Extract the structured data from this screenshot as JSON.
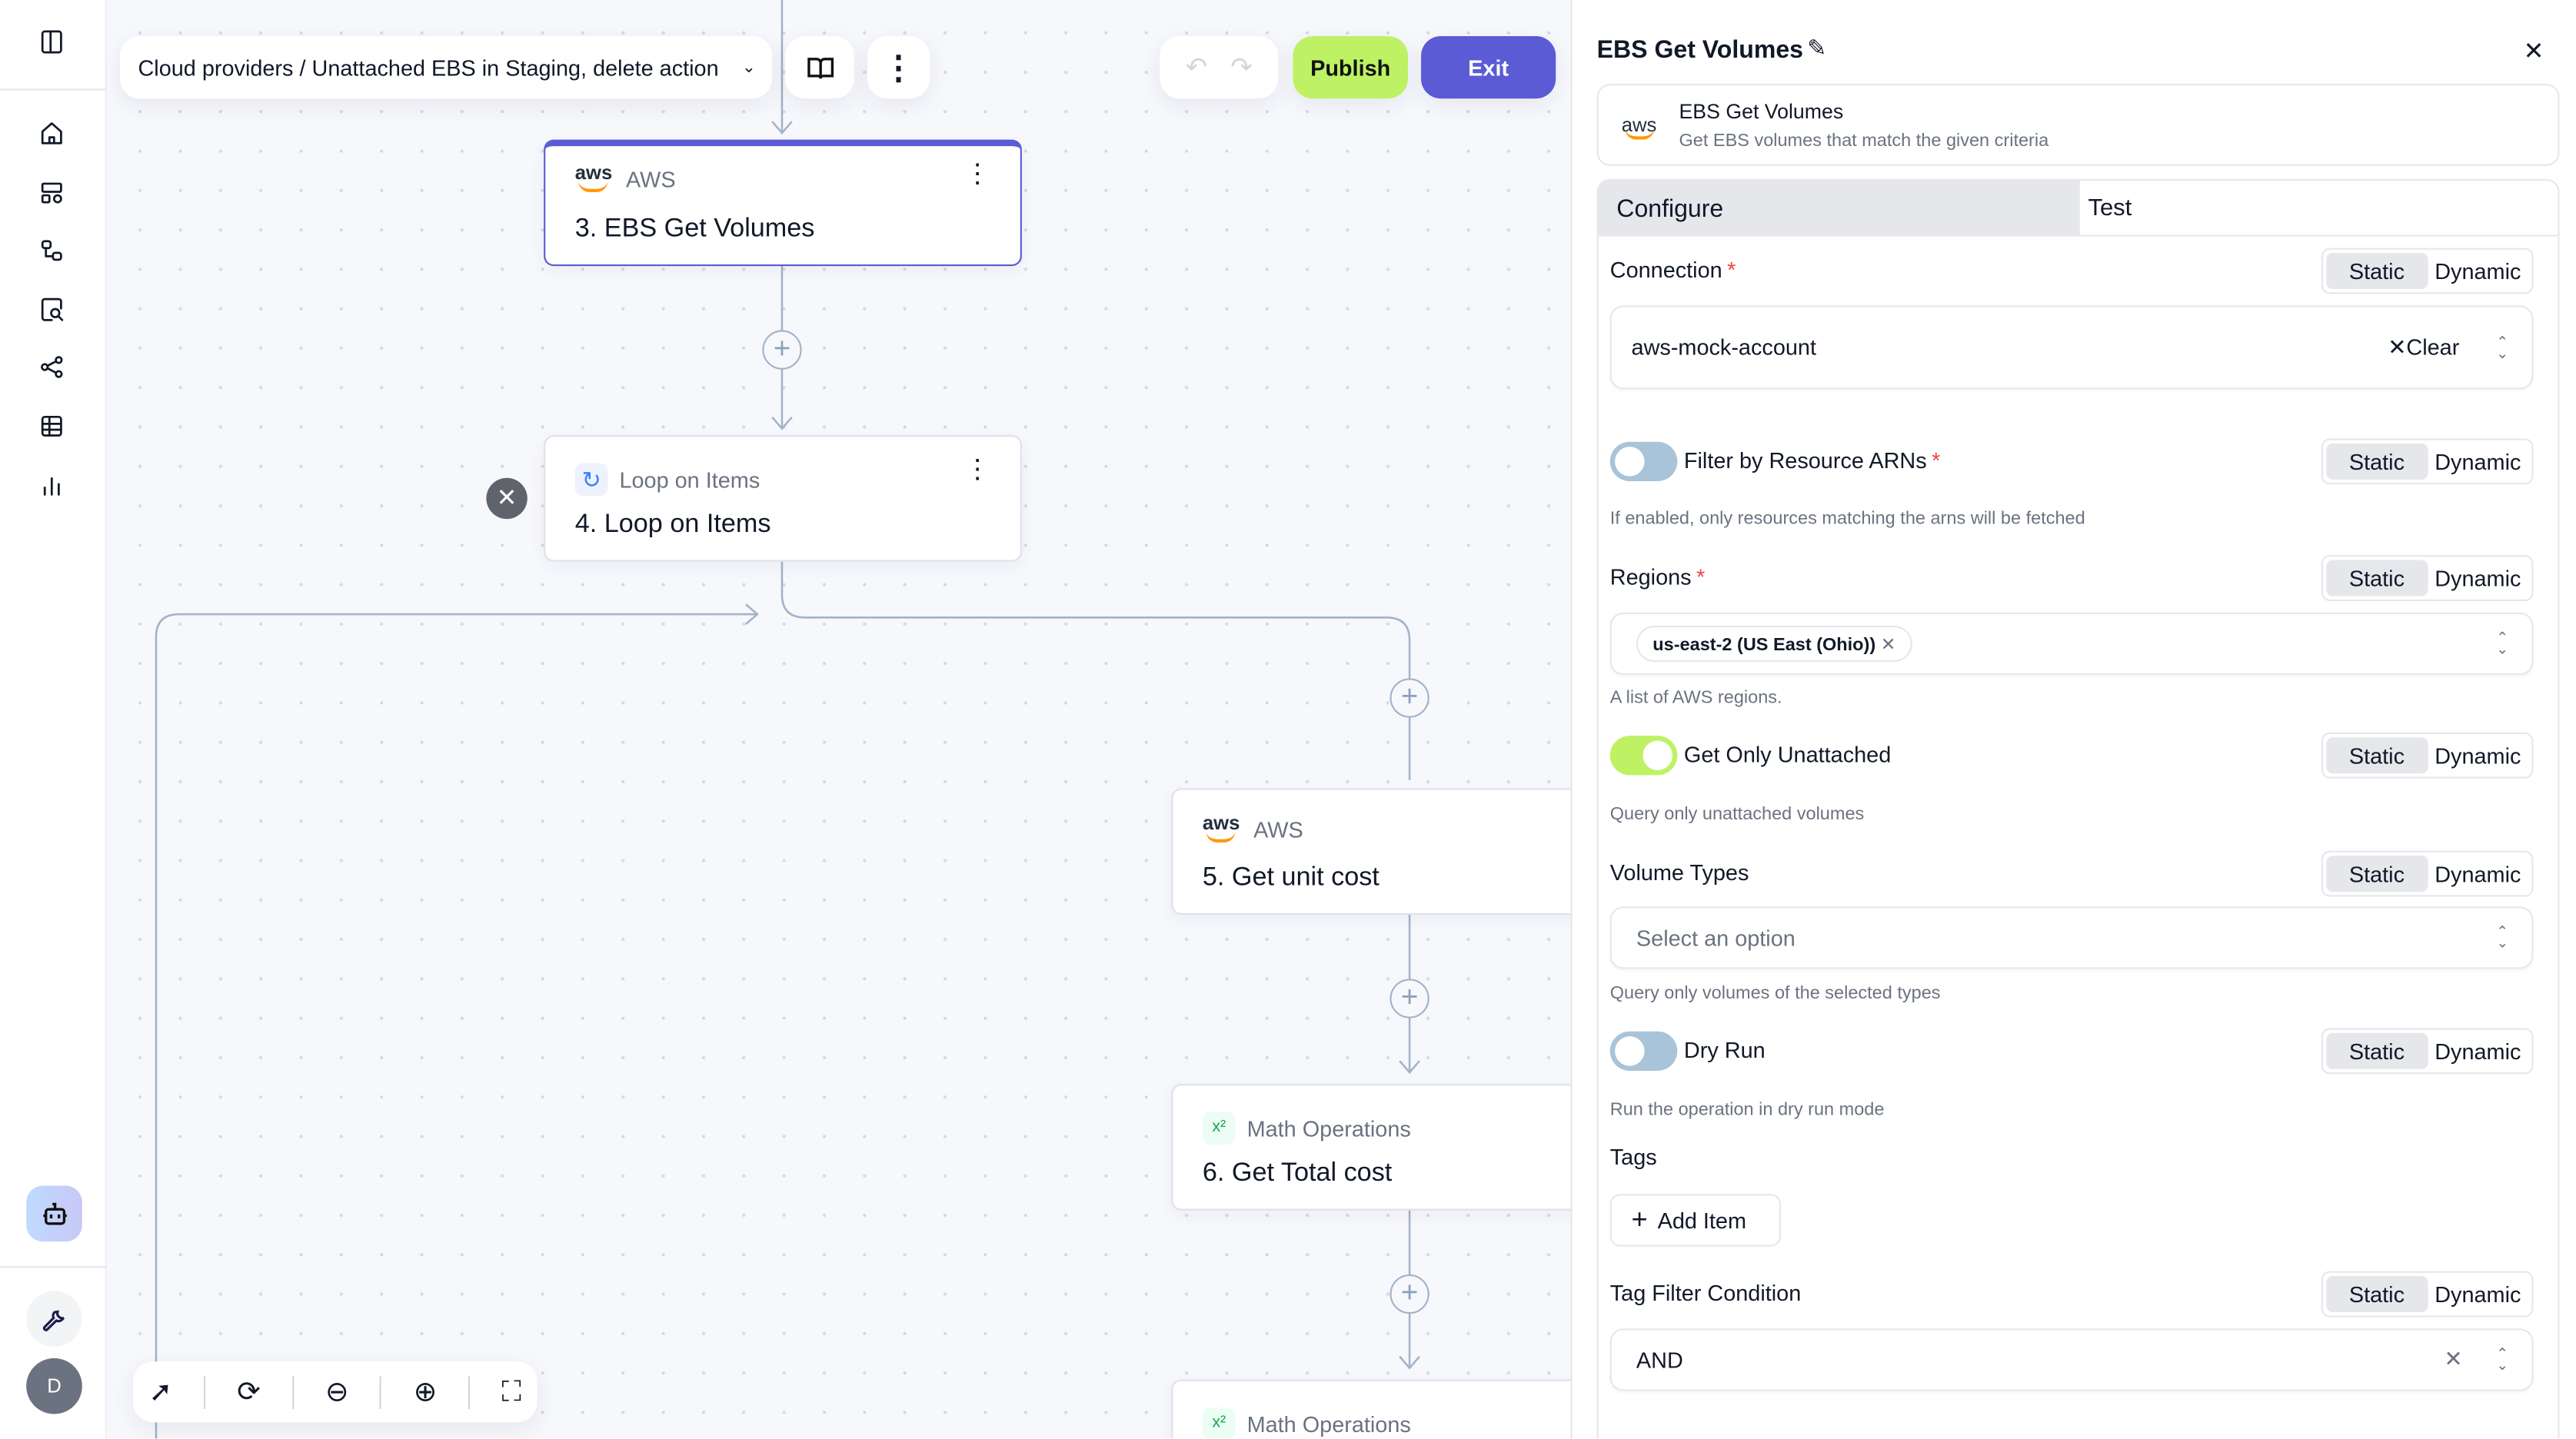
{
  "sidebar": {
    "icons": [
      "panel-toggle-icon",
      "home-icon",
      "dashboard-icon",
      "workflow-icon",
      "search-document-icon",
      "share-icon",
      "table-icon",
      "bar-chart-icon"
    ],
    "bottom": {
      "bot_icon": "robot-icon",
      "settings_icon": "wrench-icon",
      "avatar_initial": "D"
    }
  },
  "header": {
    "breadcrumb": "Cloud providers / Unattached EBS in Staging, delete action",
    "publish_label": "Publish",
    "exit_label": "Exit"
  },
  "colors": {
    "accent": "#5b5bd6",
    "publish": "#bef264",
    "toggle_on": "#bef264",
    "toggle_off": "#a9c4d8"
  },
  "canvas": {
    "nodes": [
      {
        "service": "AWS",
        "title": "3. EBS Get Volumes",
        "icon": "aws-logo",
        "selected": true
      },
      {
        "service": "Loop on Items",
        "title": "4. Loop on Items",
        "icon": "loop-icon"
      },
      {
        "service": "AWS",
        "title": "5. Get unit cost",
        "icon": "aws-logo"
      },
      {
        "service": "Math Operations",
        "title": "6. Get Total cost",
        "icon": "math-icon"
      },
      {
        "service": "Math Operations",
        "title": "",
        "icon": "math-icon"
      }
    ],
    "toolbar": [
      "pointer-icon",
      "refresh-icon",
      "zoom-out-icon",
      "zoom-in-icon",
      "fit-view-icon"
    ]
  },
  "panel": {
    "title": "EBS Get Volumes",
    "card": {
      "logo": "aws",
      "name": "EBS Get Volumes",
      "description": "Get EBS volumes that match the given criteria"
    },
    "tabs": [
      {
        "label": "Configure",
        "active": true
      },
      {
        "label": "Test",
        "active": false
      }
    ],
    "mode": {
      "static": "Static",
      "dynamic": "Dynamic"
    },
    "fields": {
      "connection": {
        "label": "Connection",
        "required": "*",
        "value": "aws-mock-account",
        "clear": "Clear"
      },
      "filter_arns": {
        "label": "Filter by Resource ARNs",
        "required": "*",
        "enabled": false,
        "help": "If enabled, only resources matching the arns will be fetched"
      },
      "regions": {
        "label": "Regions",
        "required": "*",
        "chip": "us-east-2 (US East (Ohio))",
        "help": "A list of AWS regions."
      },
      "unattached": {
        "label": "Get Only Unattached",
        "enabled": true,
        "help": "Query only unattached volumes"
      },
      "volume_types": {
        "label": "Volume Types",
        "placeholder": "Select an option",
        "help": "Query only volumes of the selected types"
      },
      "dry_run": {
        "label": "Dry Run",
        "enabled": false,
        "help": "Run the operation in dry run mode"
      },
      "tags": {
        "label": "Tags",
        "add_label": "Add Item"
      },
      "tag_filter": {
        "label": "Tag Filter Condition",
        "value": "AND"
      }
    }
  }
}
